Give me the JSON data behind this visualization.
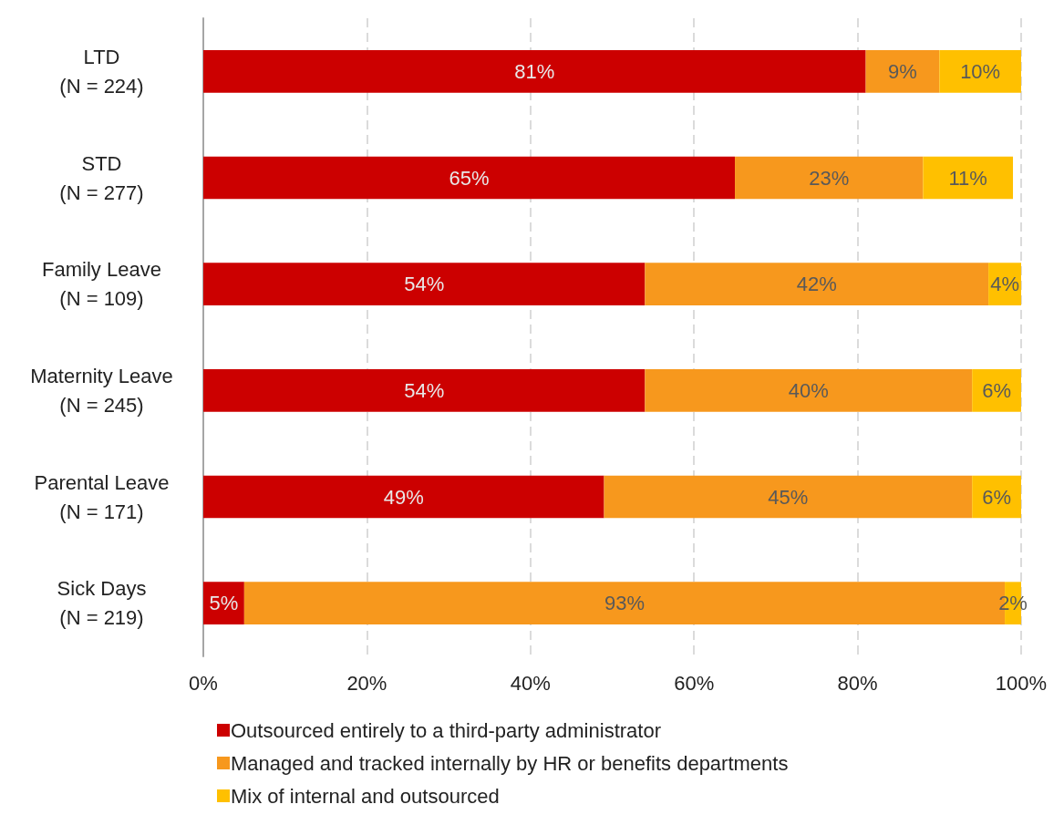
{
  "chart_data": {
    "type": "bar",
    "orientation": "horizontal",
    "stacked": true,
    "categories": [
      "LTD\n(N = 224)",
      "STD\n(N = 277)",
      "Family Leave\n(N = 109)",
      "Maternity Leave\n(N = 245)",
      "Parental Leave\n(N = 171)",
      "Sick Days\n(N = 219)"
    ],
    "series": [
      {
        "name": "Outsourced entirely to a third-party administrator",
        "color": "#cc0000",
        "values": [
          81,
          65,
          54,
          54,
          49,
          5
        ],
        "value_labels": [
          "81%",
          "65%",
          "54%",
          "54%",
          "49%",
          "5%"
        ]
      },
      {
        "name": "Managed and tracked internally by HR or benefits departments",
        "color": "#f7981d",
        "values": [
          9,
          23,
          42,
          40,
          45,
          93
        ],
        "value_labels": [
          "9%",
          "23%",
          "42%",
          "40%",
          "45%",
          "93%"
        ]
      },
      {
        "name": "Mix of internal and outsourced",
        "color": "#ffc000",
        "values": [
          10,
          11,
          4,
          6,
          6,
          2
        ],
        "value_labels": [
          "10%",
          "11%",
          "4%",
          "6%",
          "6%",
          "2%"
        ]
      }
    ],
    "xlim": [
      0,
      100
    ],
    "xticks": [
      {
        "value": 0,
        "label": "0%"
      },
      {
        "value": 20,
        "label": "20%"
      },
      {
        "value": 40,
        "label": "40%"
      },
      {
        "value": 60,
        "label": "60%"
      },
      {
        "value": 80,
        "label": "80%"
      },
      {
        "value": 100,
        "label": "100%"
      }
    ],
    "grid": "x",
    "legend": "bottom left"
  }
}
